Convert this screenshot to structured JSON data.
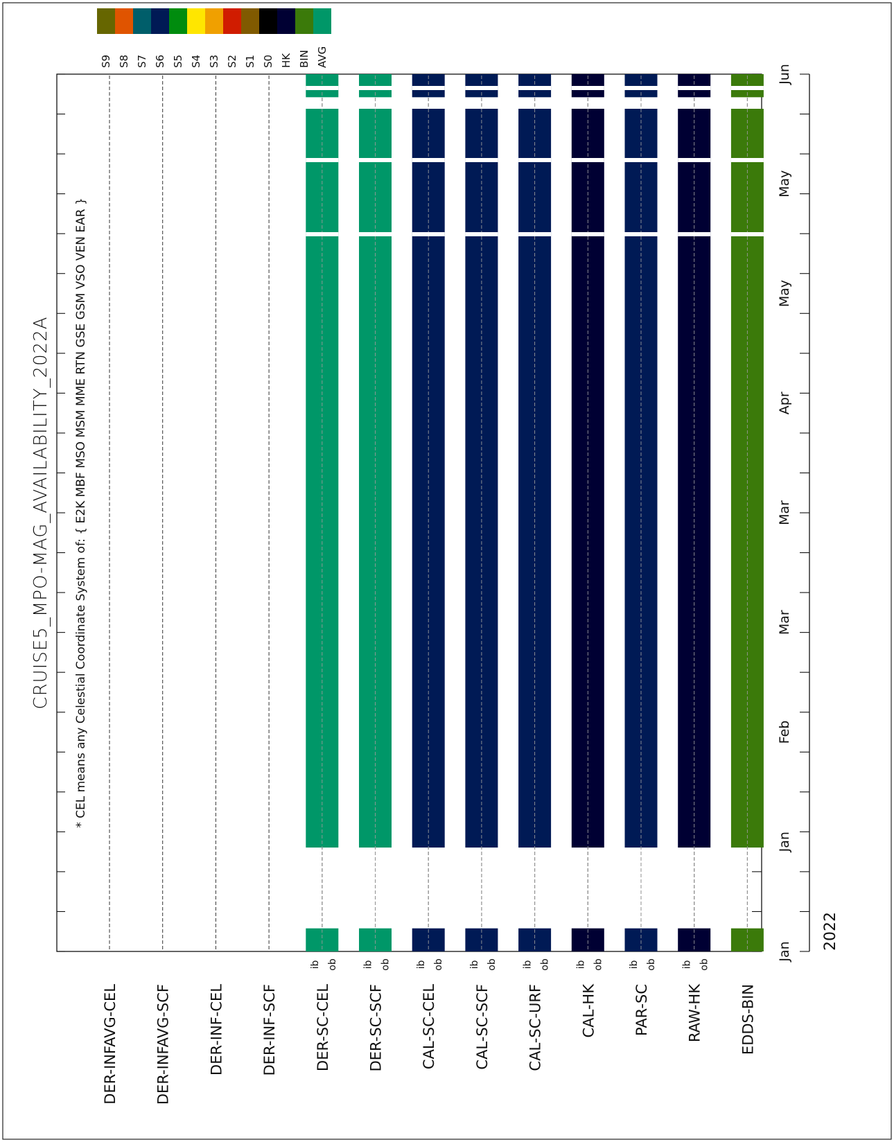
{
  "chart_data": {
    "type": "timeline",
    "title": "CRUISE5_MPO-MAG_AVAILABILITY_2022A",
    "subtitle": "* CEL means any Celestial Coordinate System of: { E2K MBF MSO MSM MME RTN GSE GSM VSO VEN EAR }",
    "year_label": "2022",
    "time_axis": {
      "orientation": "vertical",
      "tick_labels": [
        "Jan",
        "Jan",
        "Feb",
        "Mar",
        "Mar",
        "Apr",
        "May",
        "May",
        "Jun"
      ],
      "major_tick_count": 23
    },
    "legend": [
      {
        "name": "S9",
        "color": "#666600"
      },
      {
        "name": "S8",
        "color": "#e05400"
      },
      {
        "name": "S7",
        "color": "#005e6a"
      },
      {
        "name": "S6",
        "color": "#001a55"
      },
      {
        "name": "S5",
        "color": "#008c0e"
      },
      {
        "name": "S4",
        "color": "#ffe600"
      },
      {
        "name": "S3",
        "color": "#f0a000"
      },
      {
        "name": "S2",
        "color": "#d01c00"
      },
      {
        "name": "S1",
        "color": "#805a00"
      },
      {
        "name": "S0",
        "color": "#000000"
      },
      {
        "name": "HK",
        "color": "#000033"
      },
      {
        "name": "BIN",
        "color": "#3b7a0a"
      },
      {
        "name": "AVG",
        "color": "#009768"
      }
    ],
    "products": [
      {
        "name": "DER-INFAVG-CEL",
        "color": null,
        "show_ib_ob": false
      },
      {
        "name": "DER-INFAVG-SCF",
        "color": null,
        "show_ib_ob": false
      },
      {
        "name": "DER-INF-CEL",
        "color": null,
        "show_ib_ob": false
      },
      {
        "name": "DER-INF-SCF",
        "color": null,
        "show_ib_ob": false
      },
      {
        "name": "DER-SC-CEL",
        "color": "#009768",
        "show_ib_ob": true
      },
      {
        "name": "DER-SC-SCF",
        "color": "#009768",
        "show_ib_ob": true
      },
      {
        "name": "CAL-SC-CEL",
        "color": "#001a55",
        "show_ib_ob": true
      },
      {
        "name": "CAL-SC-SCF",
        "color": "#001a55",
        "show_ib_ob": true
      },
      {
        "name": "CAL-SC-URF",
        "color": "#001a55",
        "show_ib_ob": true
      },
      {
        "name": "CAL-HK",
        "color": "#000033",
        "show_ib_ob": true
      },
      {
        "name": "PAR-SC",
        "color": "#001a55",
        "show_ib_ob": true
      },
      {
        "name": "RAW-HK",
        "color": "#000033",
        "show_ib_ob": true
      },
      {
        "name": "EDDS-BIN",
        "color": "#3b7a0a",
        "show_ib_ob": false
      }
    ],
    "segments_days": [
      [
        0,
        4
      ],
      [
        18,
        146
      ],
      [
        148,
        152
      ]
    ],
    "segments_note_units": "days since 2022-01-01",
    "ib_label": "ib",
    "ob_label": "ob"
  }
}
